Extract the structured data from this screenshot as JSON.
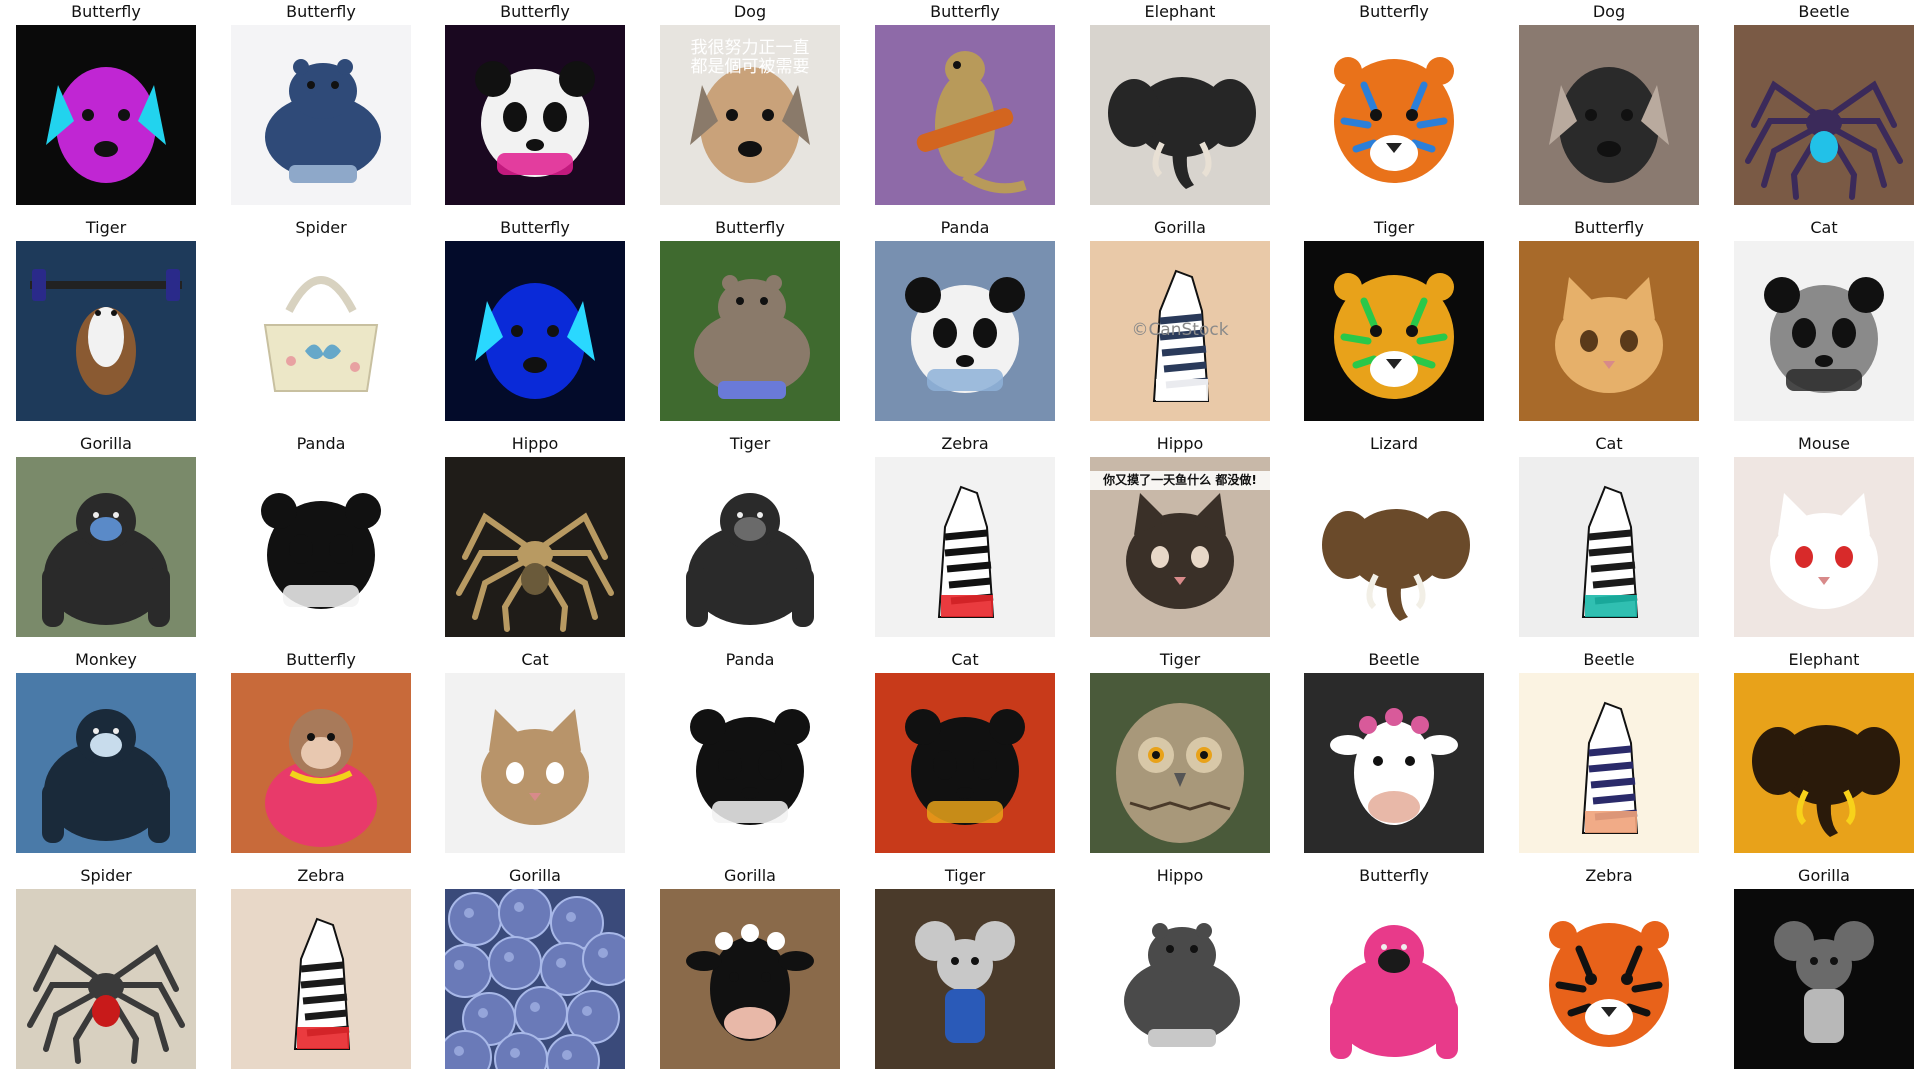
{
  "cells": [
    {
      "label": "Butterfly",
      "subject": "pop-art dog portrait",
      "icon": "dog-icon",
      "bg": "#0a0a0a",
      "fg": "#c026d3",
      "accent": "#22d3ee",
      "overlay": ""
    },
    {
      "label": "Butterfly",
      "subject": "hippo in suit with cane",
      "icon": "hippo-icon",
      "bg": "#f4f4f6",
      "fg": "#2f4a78",
      "accent": "#8ea8c9",
      "overlay": ""
    },
    {
      "label": "Butterfly",
      "subject": "astronaut panda",
      "icon": "panda-icon",
      "bg": "#1a0820",
      "fg": "#f2f2f2",
      "accent": "#e11d8f",
      "overlay": ""
    },
    {
      "label": "Dog",
      "subject": "dog face under netting",
      "icon": "dog-icon",
      "bg": "#e7e4df",
      "fg": "#c9a27a",
      "accent": "#8a7a6a",
      "overlay": "我很努力正一直\n都是個可被需要"
    },
    {
      "label": "Butterfly",
      "subject": "lizard playing guitar",
      "icon": "lizard-icon",
      "bg": "#8e6aa8",
      "fg": "#b89a5a",
      "accent": "#d3651f",
      "overlay": ""
    },
    {
      "label": "Elephant",
      "subject": "elephant figurine",
      "icon": "elephant-icon",
      "bg": "#d8d4ce",
      "fg": "#262626",
      "accent": "#e8e0d4",
      "overlay": ""
    },
    {
      "label": "Butterfly",
      "subject": "watercolor tiger",
      "icon": "tiger-icon",
      "bg": "#ffffff",
      "fg": "#e9721a",
      "accent": "#2c7fd8",
      "overlay": ""
    },
    {
      "label": "Dog",
      "subject": "dog tattoo on arm",
      "icon": "dog-icon",
      "bg": "#8a7a70",
      "fg": "#2a2a2a",
      "accent": "#b9aa9e",
      "overlay": ""
    },
    {
      "label": "Beetle",
      "subject": "colorful spider",
      "icon": "spider-icon",
      "bg": "#7a5a45",
      "fg": "#3b2a5a",
      "accent": "#22c1e8",
      "overlay": ""
    },
    {
      "label": "Tiger",
      "subject": "guinea pig lifting barbell",
      "icon": "rodent-icon",
      "bg": "#1e3a5a",
      "fg": "#8a5a32",
      "accent": "#2a2a8a",
      "overlay": ""
    },
    {
      "label": "Spider",
      "subject": "butterfly handbag",
      "icon": "bag-icon",
      "bg": "#ffffff",
      "fg": "#ece7c7",
      "accent": "#66a8c9",
      "overlay": ""
    },
    {
      "label": "Butterfly",
      "subject": "neon dog silhouette",
      "icon": "dog-icon",
      "bg": "#030b2a",
      "fg": "#0a2ad8",
      "accent": "#2ad8ff",
      "overlay": ""
    },
    {
      "label": "Butterfly",
      "subject": "hippo in tutu",
      "icon": "hippo-icon",
      "bg": "#3f6a2f",
      "fg": "#8a7a6a",
      "accent": "#6a7ad8",
      "overlay": ""
    },
    {
      "label": "Panda",
      "subject": "panda wearing mask",
      "icon": "panda-icon",
      "bg": "#7890b0",
      "fg": "#f2f2f2",
      "accent": "#8eb2d8",
      "overlay": ""
    },
    {
      "label": "Gorilla",
      "subject": "zebra man in suit",
      "icon": "zebra-icon",
      "bg": "#e9c9a8",
      "fg": "#2a3a5a",
      "accent": "#ffffff",
      "overlay": "©CanStock"
    },
    {
      "label": "Tiger",
      "subject": "rainbow tiger",
      "icon": "tiger-icon",
      "bg": "#0a0a0a",
      "fg": "#e8a21a",
      "accent": "#2ac84a",
      "overlay": ""
    },
    {
      "label": "Butterfly",
      "subject": "cat face bread",
      "icon": "cat-icon",
      "bg": "#a86a2a",
      "fg": "#e6b06a",
      "accent": "#5a3a1a",
      "overlay": ""
    },
    {
      "label": "Cat",
      "subject": "pencil sketch panda",
      "icon": "panda-icon",
      "bg": "#f2f2f2",
      "fg": "#8a8a8a",
      "accent": "#2a2a2a",
      "overlay": ""
    },
    {
      "label": "Gorilla",
      "subject": "gorilla on motorcycle",
      "icon": "gorilla-icon",
      "bg": "#7a8a6a",
      "fg": "#2a2a2a",
      "accent": "#5a8ac8",
      "overlay": ""
    },
    {
      "label": "Panda",
      "subject": "panda plush",
      "icon": "panda-icon",
      "bg": "#ffffff",
      "fg": "#111111",
      "accent": "#f2f2f2",
      "overlay": ""
    },
    {
      "label": "Hippo",
      "subject": "spider on dark ground",
      "icon": "spider-icon",
      "bg": "#1f1c18",
      "fg": "#b89a62",
      "accent": "#6a5a3a",
      "overlay": ""
    },
    {
      "label": "Tiger",
      "subject": "gorilla figurine",
      "icon": "gorilla-icon",
      "bg": "#ffffff",
      "fg": "#2a2a2a",
      "accent": "#6a6a6a",
      "overlay": ""
    },
    {
      "label": "Zebra",
      "subject": "zebra on t-shirt",
      "icon": "zebra-icon",
      "bg": "#f2f2f2",
      "fg": "#111111",
      "accent": "#e8262a",
      "overlay": ""
    },
    {
      "label": "Hippo",
      "subject": "two cats meme",
      "icon": "cat-icon",
      "bg": "#c8b8a8",
      "fg": "#3a3028",
      "accent": "#e8d8c8",
      "overlay": "你又摸了一天鱼什么 都没做!"
    },
    {
      "label": "Lizard",
      "subject": "elephant head wall mount",
      "icon": "elephant-icon",
      "bg": "#ffffff",
      "fg": "#6a4a2a",
      "accent": "#f2efe6",
      "overlay": ""
    },
    {
      "label": "Cat",
      "subject": "framed zebra portrait",
      "icon": "zebra-icon",
      "bg": "#eeeeee",
      "fg": "#1a1a1a",
      "accent": "#1ab8a8",
      "overlay": ""
    },
    {
      "label": "Mouse",
      "subject": "white cat with tiara",
      "icon": "cat-icon",
      "bg": "#efe6e2",
      "fg": "#ffffff",
      "accent": "#d82a2a",
      "overlay": ""
    },
    {
      "label": "Monkey",
      "subject": "gorilla in snow",
      "icon": "gorilla-icon",
      "bg": "#4a7aa8",
      "fg": "#1a2a3a",
      "accent": "#c8dcec",
      "overlay": ""
    },
    {
      "label": "Butterfly",
      "subject": "monkey in dress",
      "icon": "monkey-icon",
      "bg": "#c86a3a",
      "fg": "#a87a5a",
      "accent": "#e83a6a",
      "overlay": ""
    },
    {
      "label": "Cat",
      "subject": "cat with blonde wig",
      "icon": "cat-icon",
      "bg": "#f2f2f2",
      "fg": "#b8946a",
      "accent": "#ffffff",
      "overlay": ""
    },
    {
      "label": "Panda",
      "subject": "baby in panda costume",
      "icon": "panda-icon",
      "bg": "#ffffff",
      "fg": "#111111",
      "accent": "#f2f2f2",
      "overlay": ""
    },
    {
      "label": "Cat",
      "subject": "kung fu panda sunset",
      "icon": "panda-icon",
      "bg": "#c83a1a",
      "fg": "#111111",
      "accent": "#e8a21a",
      "overlay": ""
    },
    {
      "label": "Tiger",
      "subject": "owl close-up",
      "icon": "owl-icon",
      "bg": "#4a5a3a",
      "fg": "#a8987a",
      "accent": "#d8c8a8",
      "overlay": ""
    },
    {
      "label": "Beetle",
      "subject": "framed cow with flowers",
      "icon": "cow-icon",
      "bg": "#2a2a2a",
      "fg": "#ffffff",
      "accent": "#d85a9a",
      "overlay": ""
    },
    {
      "label": "Beetle",
      "subject": "striped zebra toy",
      "icon": "zebra-icon",
      "bg": "#fbf3e2",
      "fg": "#2a2a6a",
      "accent": "#f0a27a",
      "overlay": ""
    },
    {
      "label": "Elephant",
      "subject": "elephant silhouette sunset",
      "icon": "elephant-icon",
      "bg": "#e8a21a",
      "fg": "#2a1a0a",
      "accent": "#f8d21a",
      "overlay": ""
    },
    {
      "label": "Spider",
      "subject": "robot spider sculpture",
      "icon": "spider-icon",
      "bg": "#d8d0c0",
      "fg": "#3a3a3a",
      "accent": "#c81a1a",
      "overlay": ""
    },
    {
      "label": "Zebra",
      "subject": "rainbow zebras",
      "icon": "zebra-icon",
      "bg": "#e8d8c8",
      "fg": "#1a1a1a",
      "accent": "#e8262a",
      "overlay": ""
    },
    {
      "label": "Gorilla",
      "subject": "blueberries",
      "icon": "berry-icon",
      "bg": "#3a4a7a",
      "fg": "#6a7ab8",
      "accent": "#a8b8e8",
      "overlay": ""
    },
    {
      "label": "Gorilla",
      "subject": "cow in nun habit",
      "icon": "cow-icon",
      "bg": "#8a6a4a",
      "fg": "#111111",
      "accent": "#ffffff",
      "overlay": ""
    },
    {
      "label": "Tiger",
      "subject": "mouse character in street",
      "icon": "mouse-icon",
      "bg": "#4a3a2a",
      "fg": "#2a5ab8",
      "accent": "#c8c8c8",
      "overlay": ""
    },
    {
      "label": "Hippo",
      "subject": "hippo doing handstand",
      "icon": "hippo-icon",
      "bg": "#ffffff",
      "fg": "#4a4a4a",
      "accent": "#c8c8c8",
      "overlay": ""
    },
    {
      "label": "Butterfly",
      "subject": "woman with gorilla head",
      "icon": "gorilla-icon",
      "bg": "#ffffff",
      "fg": "#e83a8a",
      "accent": "#1a1a1a",
      "overlay": ""
    },
    {
      "label": "Zebra",
      "subject": "tiger head logo",
      "icon": "tiger-icon",
      "bg": "#ffffff",
      "fg": "#e8621a",
      "accent": "#111111",
      "overlay": ""
    },
    {
      "label": "Gorilla",
      "subject": "metal mouse sculpture",
      "icon": "mouse-icon",
      "bg": "#0a0a0a",
      "fg": "#b8b8b8",
      "accent": "#6a6a6a",
      "overlay": ""
    }
  ]
}
